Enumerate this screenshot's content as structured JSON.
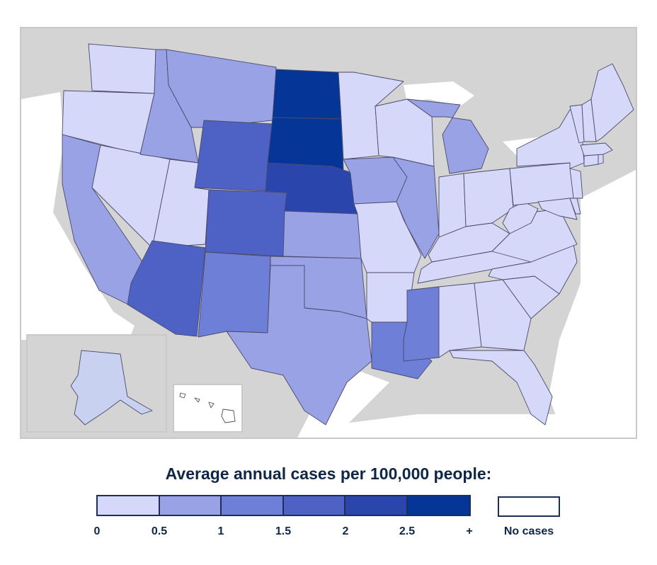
{
  "legend": {
    "title": "Average annual cases per 100,000 people:",
    "ticks": [
      "0",
      "0.5",
      "1",
      "1.5",
      "2",
      "2.5",
      "+"
    ],
    "no_cases_label": "No cases",
    "no_cases_color": "#ffffff",
    "bins": [
      {
        "range": [
          0,
          0.5
        ],
        "color": "#d6d8fa"
      },
      {
        "range": [
          0.5,
          1
        ],
        "color": "#9aa2e6"
      },
      {
        "range": [
          1,
          1.5
        ],
        "color": "#6e7fd8"
      },
      {
        "range": [
          1.5,
          2
        ],
        "color": "#4d62c4"
      },
      {
        "range": [
          2,
          2.5
        ],
        "color": "#2a46ac"
      },
      {
        "range": [
          2.5,
          null
        ],
        "color": "#053596"
      }
    ]
  },
  "map": {
    "background_land_color": "#d4d4d4",
    "water_color": "#ffffff",
    "insets": [
      "Alaska",
      "Hawaii"
    ],
    "states": {
      "WA": 0,
      "OR": 0,
      "CA": 1,
      "NV": 0,
      "ID": 1,
      "MT": 1,
      "WY": 3,
      "UT": 0,
      "AZ": 3,
      "CO": 3,
      "NM": 2,
      "ND": 5,
      "SD": 5,
      "NE": 4,
      "KS": 1,
      "OK": 1,
      "TX": 1,
      "MN": 0,
      "IA": 1,
      "MO": 0,
      "AR": 0,
      "LA": 2,
      "WI": 0,
      "IL": 1,
      "MI": 1,
      "IN": 0,
      "OH": 0,
      "KY": 0,
      "TN": 0,
      "MS": 2,
      "AL": 0,
      "GA": 0,
      "FL": 0,
      "SC": 0,
      "NC": 0,
      "VA": 0,
      "WV": 0,
      "PA": 0,
      "NY": 0,
      "NJ": 0,
      "DE": 0,
      "MD": 0,
      "VT": 0,
      "NH": 0,
      "ME": 0,
      "MA": 0,
      "CT": 0,
      "RI": 0,
      "AK": "light",
      "HI": "none"
    },
    "alaska_color": "#c8d2f0"
  }
}
